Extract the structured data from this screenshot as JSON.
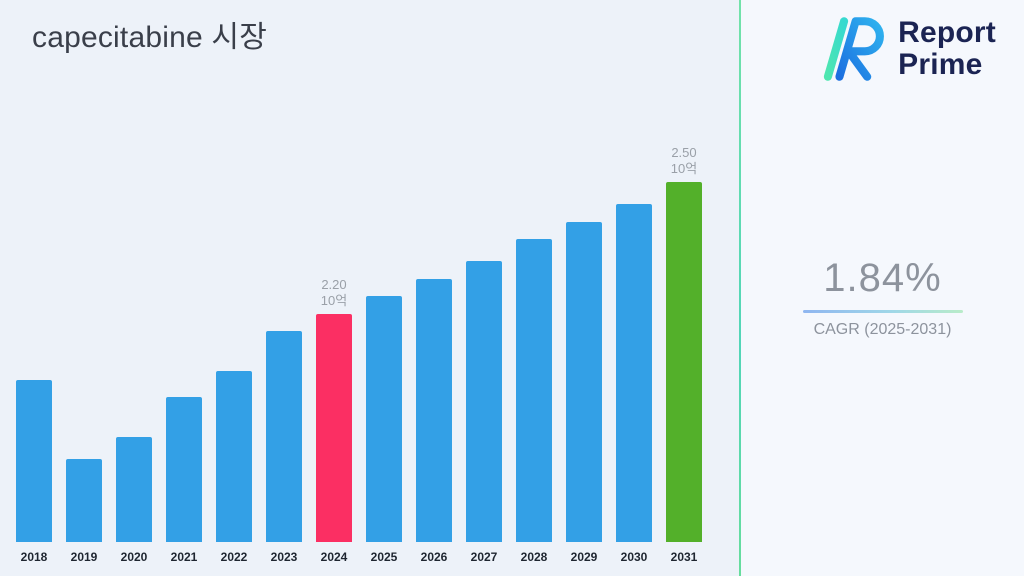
{
  "title": "capecitabine 시장",
  "logo": {
    "line1": "Report",
    "line2": "Prime"
  },
  "stats": {
    "value": "1.84%",
    "label": "CAGR (2025-2031)"
  },
  "colors": {
    "bar_default": "#33a0e6",
    "bar_2024": "#fb2f63",
    "bar_2031": "#53b02a",
    "background": "#edf2f9",
    "divider": "#66dfa4",
    "logo_navy": "#1b2453"
  },
  "chart_data": {
    "type": "bar",
    "title": "capecitabine 시장",
    "xlabel": "",
    "ylabel": "",
    "unit": "10억",
    "categories": [
      "2018",
      "2019",
      "2020",
      "2021",
      "2022",
      "2023",
      "2024",
      "2025",
      "2026",
      "2027",
      "2028",
      "2029",
      "2030",
      "2031"
    ],
    "values": [
      2.05,
      1.87,
      1.92,
      2.01,
      2.07,
      2.16,
      2.2,
      2.24,
      2.28,
      2.32,
      2.37,
      2.41,
      2.45,
      2.5
    ],
    "ylim": [
      1.68,
      2.5
    ],
    "grid": false,
    "legend": false,
    "bar_colors": {
      "2024": "#fb2f63",
      "2031": "#53b02a"
    },
    "annotations": [
      {
        "category": "2024",
        "lines": [
          "2.20",
          "10억"
        ]
      },
      {
        "category": "2031",
        "lines": [
          "2.50",
          "10억"
        ]
      }
    ]
  }
}
